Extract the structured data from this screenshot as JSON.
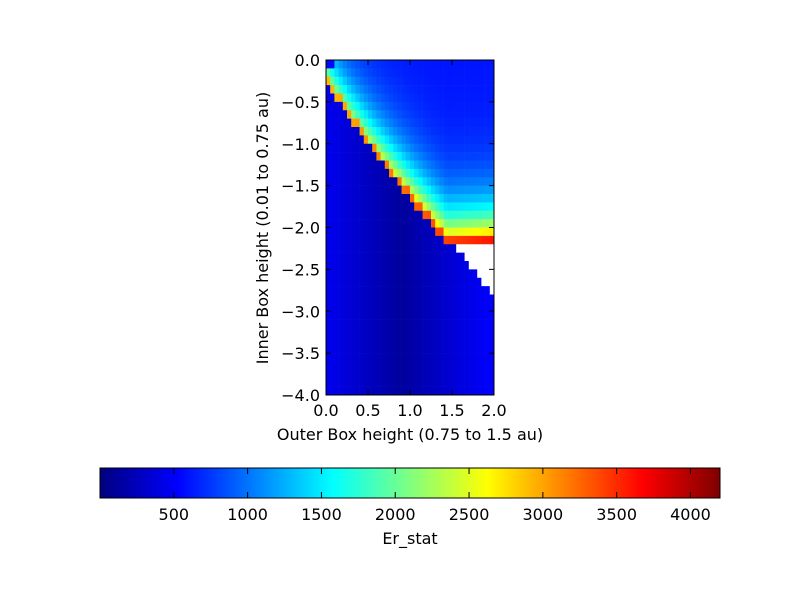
{
  "chart_data": {
    "type": "heatmap",
    "title": "",
    "xlabel": "Outer Box height (0.75 to 1.5 au)",
    "ylabel": "Inner Box height (0.01 to 0.75 au)",
    "xlim": [
      0.0,
      2.0
    ],
    "ylim": [
      -4.0,
      0.0
    ],
    "xticks": [
      "0.0",
      "0.5",
      "1.0",
      "1.5",
      "2.0"
    ],
    "yticks": [
      "0.0",
      "−0.5",
      "−1.0",
      "−1.5",
      "−2.0",
      "−2.5",
      "−3.0",
      "−3.5",
      "−4.0"
    ],
    "grid_cells": [
      40,
      40
    ],
    "colormap": "jet",
    "colorbar": {
      "label": "Er_stat",
      "orientation": "horizontal",
      "placement": "bottom",
      "range": [
        0,
        4200
      ],
      "ticks": [
        "500",
        "1000",
        "1500",
        "2000",
        "2500",
        "3000",
        "3500",
        "4000"
      ]
    },
    "values_description_omitted": false,
    "ridge": {
      "points": [
        [
          0.15,
          -0.2
        ],
        [
          0.25,
          -0.4
        ],
        [
          0.5,
          -0.75
        ],
        [
          0.75,
          -1.05
        ],
        [
          1.0,
          -1.3
        ],
        [
          1.25,
          -1.5
        ],
        [
          1.5,
          -1.7
        ],
        [
          1.75,
          -1.85
        ],
        [
          2.0,
          -2.05
        ]
      ],
      "peak_value_range": [
        2600,
        4200
      ]
    },
    "background_value_range": [
      150,
      800
    ],
    "missing_region": "no data below ridge, wedge from (0.15,-0.2) to (2.0,-2.85)"
  }
}
